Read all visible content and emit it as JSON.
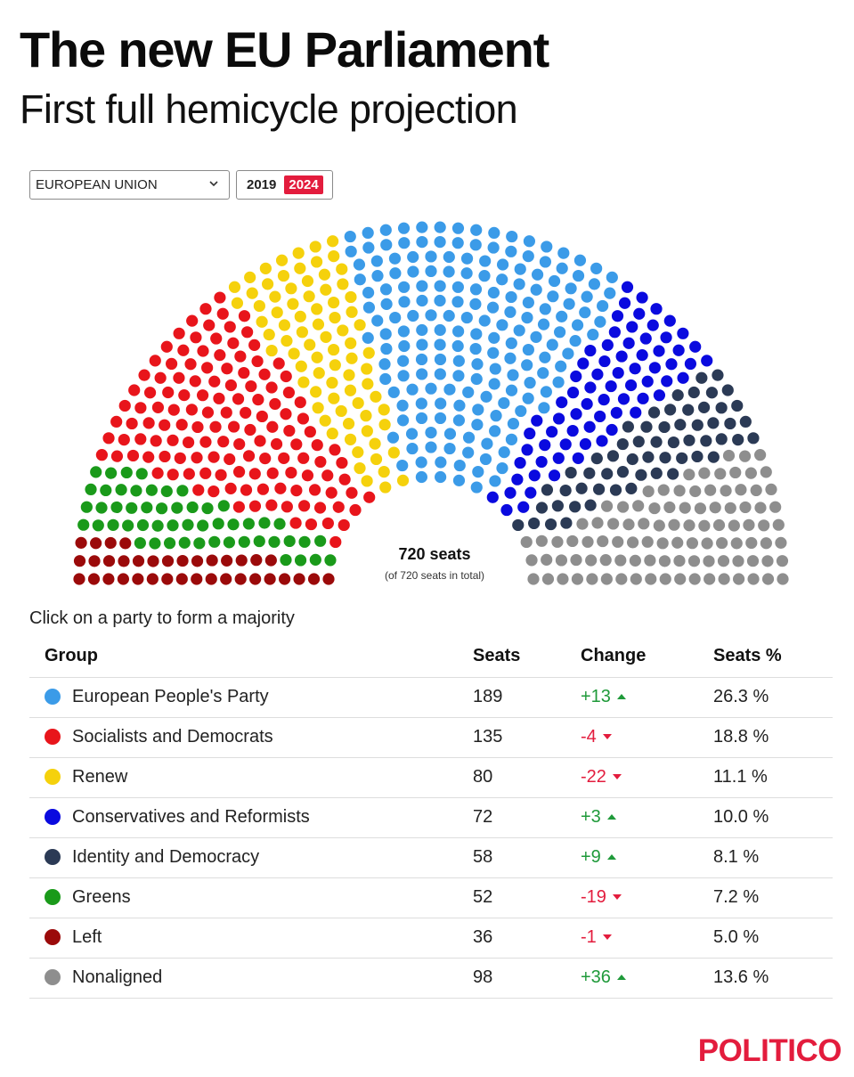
{
  "header": {
    "title": "The new EU Parliament",
    "subtitle": "First full hemicycle projection"
  },
  "controls": {
    "region": "EUROPEAN UNION",
    "years": [
      "2019",
      "2024"
    ],
    "selected_year": "2024"
  },
  "hemicycle": {
    "total_label": "720 seats",
    "total_sublabel": "(of 720 seats in total)"
  },
  "instruction": "Click on a party to form a majority",
  "table": {
    "headers": {
      "group": "Group",
      "seats": "Seats",
      "change": "Change",
      "pct": "Seats %"
    }
  },
  "chart_data": {
    "type": "hemicycle",
    "total_seats": 720,
    "parties": [
      {
        "name": "Left",
        "seats": 36,
        "change": "-1",
        "direction": "down",
        "pct": "5.0 %",
        "color": "#9b0a0a"
      },
      {
        "name": "Greens",
        "seats": 52,
        "change": "-19",
        "direction": "down",
        "pct": "7.2 %",
        "color": "#1a9a1a"
      },
      {
        "name": "Socialists and Democrats",
        "seats": 135,
        "change": "-4",
        "direction": "down",
        "pct": "18.8 %",
        "color": "#e8151b"
      },
      {
        "name": "Renew",
        "seats": 80,
        "change": "-22",
        "direction": "down",
        "pct": "11.1 %",
        "color": "#f5d10c"
      },
      {
        "name": "European People's Party",
        "seats": 189,
        "change": "+13",
        "direction": "up",
        "pct": "26.3 %",
        "color": "#3b9be8"
      },
      {
        "name": "Conservatives and Reformists",
        "seats": 72,
        "change": "+3",
        "direction": "up",
        "pct": "10.0 %",
        "color": "#0a0adf"
      },
      {
        "name": "Identity and Democracy",
        "seats": 58,
        "change": "+9",
        "direction": "up",
        "pct": "8.1 %",
        "color": "#2b3a55"
      },
      {
        "name": "Nonaligned",
        "seats": 98,
        "change": "+36",
        "direction": "up",
        "pct": "13.6 %",
        "color": "#8e8e8e"
      }
    ],
    "table_order": [
      "European People's Party",
      "Socialists and Democrats",
      "Renew",
      "Conservatives and Reformists",
      "Identity and Democracy",
      "Greens",
      "Left",
      "Nonaligned"
    ]
  },
  "brand": "POLITICO"
}
